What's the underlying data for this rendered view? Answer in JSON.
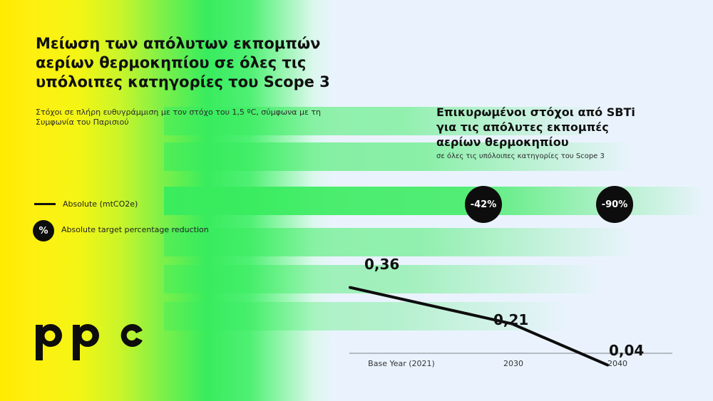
{
  "header": {
    "title": "Μείωση των απόλυτων εκπομπών αερίων θερμοκηπίου σε όλες τις υπόλοιπες κατηγορίες του Scope 3",
    "subtitle": "Στόχοι σε πλήρη ευθυγράμμιση με τον στόχο του 1,5 ºC, σύμφωνα με τη Συμφωνία του Παρισιού"
  },
  "legend": {
    "line_label": "Absolute (mtCO2e)",
    "pct_symbol": "%",
    "pct_label": "Absolute target percentage reduction"
  },
  "logo": {
    "text": "ppc"
  },
  "chart_title": "Επικυρωμένοι στόχοι από SBTi για τις απόλυτες εκπομπές αερίων θερμοκηπίου",
  "chart_subtitle": "σε όλες τις υπόλοιπες κατηγορίες του Scope 3",
  "colors": {
    "yellow": "#ffeb00",
    "green": "#38ec5e",
    "background": "#eaf3fd",
    "dark": "#0d0d0d"
  },
  "chart_data": {
    "type": "line",
    "title": "Επικυρωμένοι στόχοι από SBTi για τις απόλυτες εκπομπές αερίων θερμοκηπίου",
    "subtitle": "σε όλες τις υπόλοιπες κατηγορίες του Scope 3",
    "categories": [
      "Base Year (2021)",
      "2030",
      "2040"
    ],
    "series": [
      {
        "name": "Absolute (mtCO2e)",
        "values": [
          0.36,
          0.21,
          0.04
        ],
        "labels": [
          "0,36",
          "0,21",
          "0,04"
        ]
      }
    ],
    "reductions": [
      {
        "category": "2030",
        "label": "-42%"
      },
      {
        "category": "2040",
        "label": "-90%"
      }
    ],
    "ylim": [
      0,
      0.4
    ],
    "grid": false,
    "legend_position": "left"
  }
}
